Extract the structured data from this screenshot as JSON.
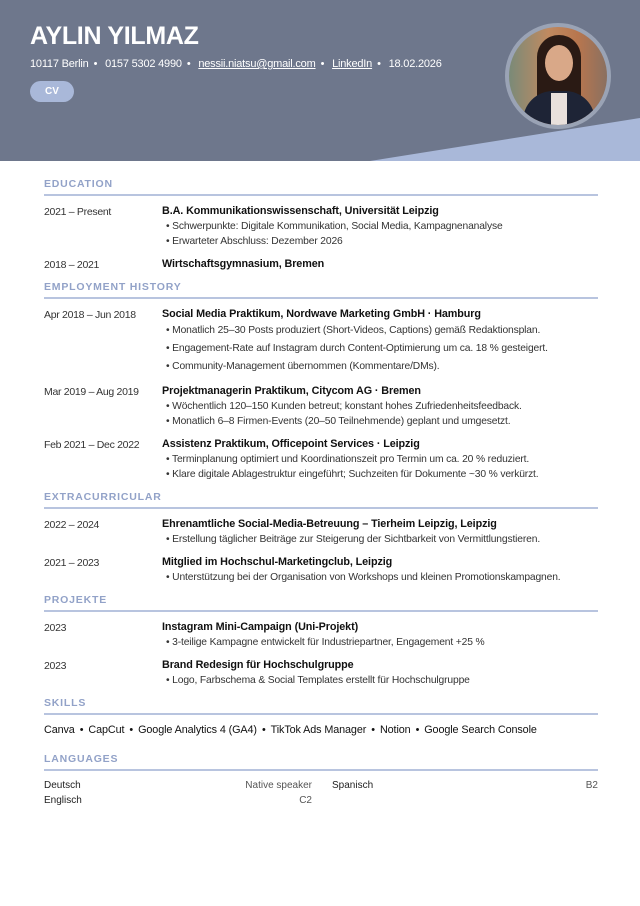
{
  "header": {
    "name": "AYLIN YILMAZ",
    "contact": [
      "10117 Berlin",
      "0157 5302 4990",
      "nessii.niatsu@gmail.com",
      "LinkedIn",
      "18.02.2026"
    ],
    "badge": "CV",
    "photo_alt": "profile photo",
    "colors": {
      "header_bg": "#6e778c",
      "accent": "#a9b8d9"
    }
  },
  "education": {
    "heading": "EDUCATION",
    "items": [
      {
        "date": "2021 – Present",
        "title": "B.A. Kommunikationswissenschaft, Universität Leipzig",
        "bullets": [
          "• Schwerpunkte: Digitale Kommunikation, Social Media, Kampagnenanalyse",
          "• Erwarteter Abschluss: Dezember 2026"
        ]
      },
      {
        "date": "2018 – 2021",
        "title": "Wirtschaftsgymnasium, Bremen",
        "bullets": []
      }
    ]
  },
  "employment": {
    "heading": "EMPLOYMENT HISTORY",
    "items": [
      {
        "date": "Apr 2018 – Jun 2018",
        "title": "Social Media Praktikum, Nordwave Marketing GmbH · Hamburg",
        "bullets": [
          "• Monatlich 25–30 Posts produziert (Short-Videos, Captions) gemäß Redaktionsplan.",
          "• Engagement-Rate auf Instagram durch Content-Optimierung um ca. 18 % gesteigert.",
          "• Community-Management übernommen (Kommentare/DMs)."
        ]
      },
      {
        "date": "Mar 2019 – Aug 2019",
        "title": "Projektmanagerin Praktikum, Citycom AG · Bremen",
        "bullets": [
          "• Wöchentlich 120–150 Kunden betreut; konstant hohes Zufriedenheitsfeedback.",
          "• Monatlich 6–8 Firmen-Events (20–50 Teilnehmende) geplant und umgesetzt."
        ]
      },
      {
        "date": "Feb 2021 – Dec 2022",
        "title": "Assistenz Praktikum, Officepoint Services · Leipzig",
        "bullets": [
          "• Terminplanung optimiert und Koordinationszeit pro Termin um ca. 20 % reduziert.",
          "• Klare digitale Ablagestruktur eingeführt; Suchzeiten für Dokumente ~30 % verkürzt."
        ]
      }
    ]
  },
  "extracurricular": {
    "heading": "EXTRACURRICULAR",
    "items": [
      {
        "date": "2022 – 2024",
        "title": "Ehrenamtliche Social-Media-Betreuung – Tierheim Leipzig, Leipzig",
        "bullets": [
          "• Erstellung täglicher Beiträge zur Steigerung der Sichtbarkeit von Vermittlungstieren."
        ]
      },
      {
        "date": "2021 – 2023",
        "title": "Mitglied im Hochschul-Marketingclub, Leipzig",
        "bullets": [
          "• Unterstützung bei der Organisation von Workshops und kleinen Promotionskampagnen."
        ]
      }
    ]
  },
  "projekte": {
    "heading": "PROJEKTE",
    "items": [
      {
        "date": "2023",
        "title": "Instagram Mini-Campaign (Uni-Projekt)",
        "bullets": [
          "• 3-teilige Kampagne entwickelt für Industriepartner, Engagement +25 %"
        ]
      },
      {
        "date": "2023",
        "title": "Brand Redesign für Hochschulgruppe",
        "bullets": [
          "• Logo, Farbschema & Social Templates erstellt für Hochschulgruppe"
        ]
      }
    ]
  },
  "skills": {
    "heading": "SKILLS",
    "items": [
      "Canva",
      "CapCut",
      "Google Analytics 4 (GA4)",
      "TikTok Ads Manager",
      "Notion",
      "Google Search Console"
    ]
  },
  "languages": {
    "heading": "LANGUAGES",
    "items": [
      {
        "name": "Deutsch",
        "level": "Native speaker"
      },
      {
        "name": "Spanisch",
        "level": "B2"
      },
      {
        "name": "Englisch",
        "level": "C2"
      }
    ]
  }
}
